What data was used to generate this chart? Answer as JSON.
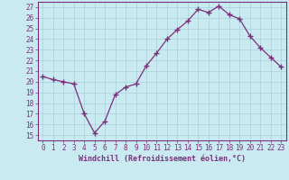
{
  "x": [
    0,
    1,
    2,
    3,
    4,
    5,
    6,
    7,
    8,
    9,
    10,
    11,
    12,
    13,
    14,
    15,
    16,
    17,
    18,
    19,
    20,
    21,
    22,
    23
  ],
  "y": [
    20.5,
    20.2,
    20.0,
    19.8,
    17.0,
    15.2,
    16.3,
    18.8,
    19.5,
    19.8,
    21.5,
    22.7,
    24.0,
    24.9,
    25.7,
    26.8,
    26.5,
    27.1,
    26.3,
    25.9,
    24.3,
    23.2,
    22.3,
    21.4
  ],
  "line_color": "#7b2f7b",
  "marker": "+",
  "marker_size": 4,
  "bg_color": "#c8eaf0",
  "grid_color": "#b0d4dc",
  "xlabel": "Windchill (Refroidissement éolien,°C)",
  "ylabel_ticks": [
    15,
    16,
    17,
    18,
    19,
    20,
    21,
    22,
    23,
    24,
    25,
    26,
    27
  ],
  "ylim": [
    14.5,
    27.5
  ],
  "xlim": [
    -0.5,
    23.5
  ],
  "tick_color": "#7b2f7b",
  "label_color": "#7b2f7b",
  "spine_color": "#7b2f7b",
  "tick_fontsize": 5.5,
  "xlabel_fontsize": 6.0
}
